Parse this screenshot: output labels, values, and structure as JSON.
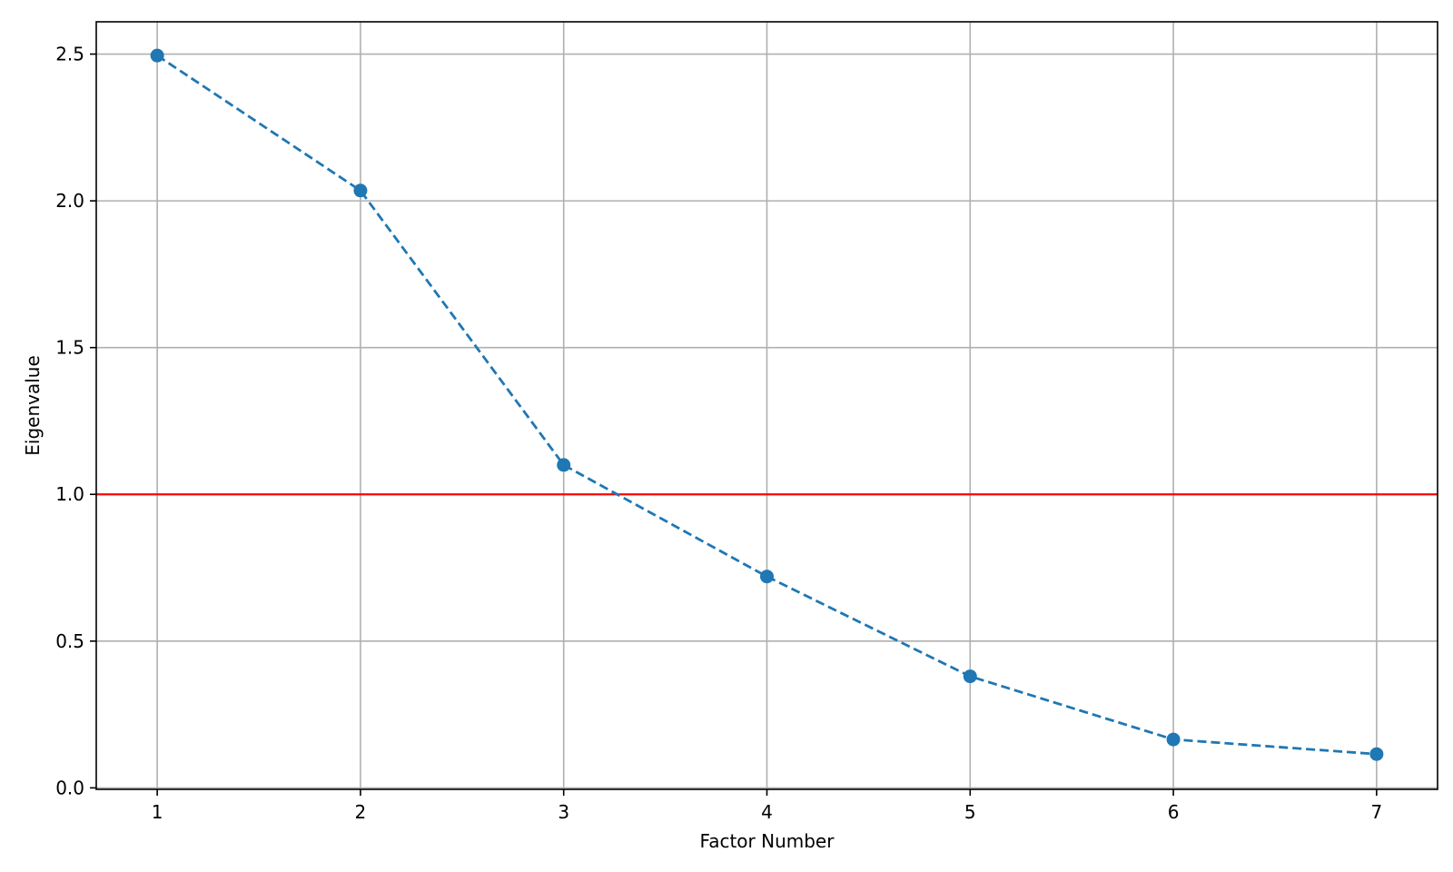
{
  "chart_data": {
    "type": "line",
    "xlabel": "Factor Number",
    "ylabel": "Eigenvalue",
    "x": [
      1,
      2,
      3,
      4,
      5,
      6,
      7
    ],
    "series": [
      {
        "values": [
          2.495,
          2.035,
          1.1,
          0.72,
          0.38,
          0.165,
          0.115
        ],
        "color": "#1f77b4",
        "line_style": "dashed",
        "marker": "circle"
      }
    ],
    "reference_line": {
      "y": 1.0,
      "color": "#ff0000"
    },
    "xlim": [
      0.7,
      7.3
    ],
    "ylim": [
      -0.005,
      2.61
    ],
    "xticks": [
      1,
      2,
      3,
      4,
      5,
      6,
      7
    ],
    "xtick_labels": [
      "1",
      "2",
      "3",
      "4",
      "5",
      "6",
      "7"
    ],
    "yticks": [
      0.0,
      0.5,
      1.0,
      1.5,
      2.0,
      2.5
    ],
    "ytick_labels": [
      "0.0",
      "0.5",
      "1.0",
      "1.5",
      "2.0",
      "2.5"
    ],
    "grid": true
  }
}
